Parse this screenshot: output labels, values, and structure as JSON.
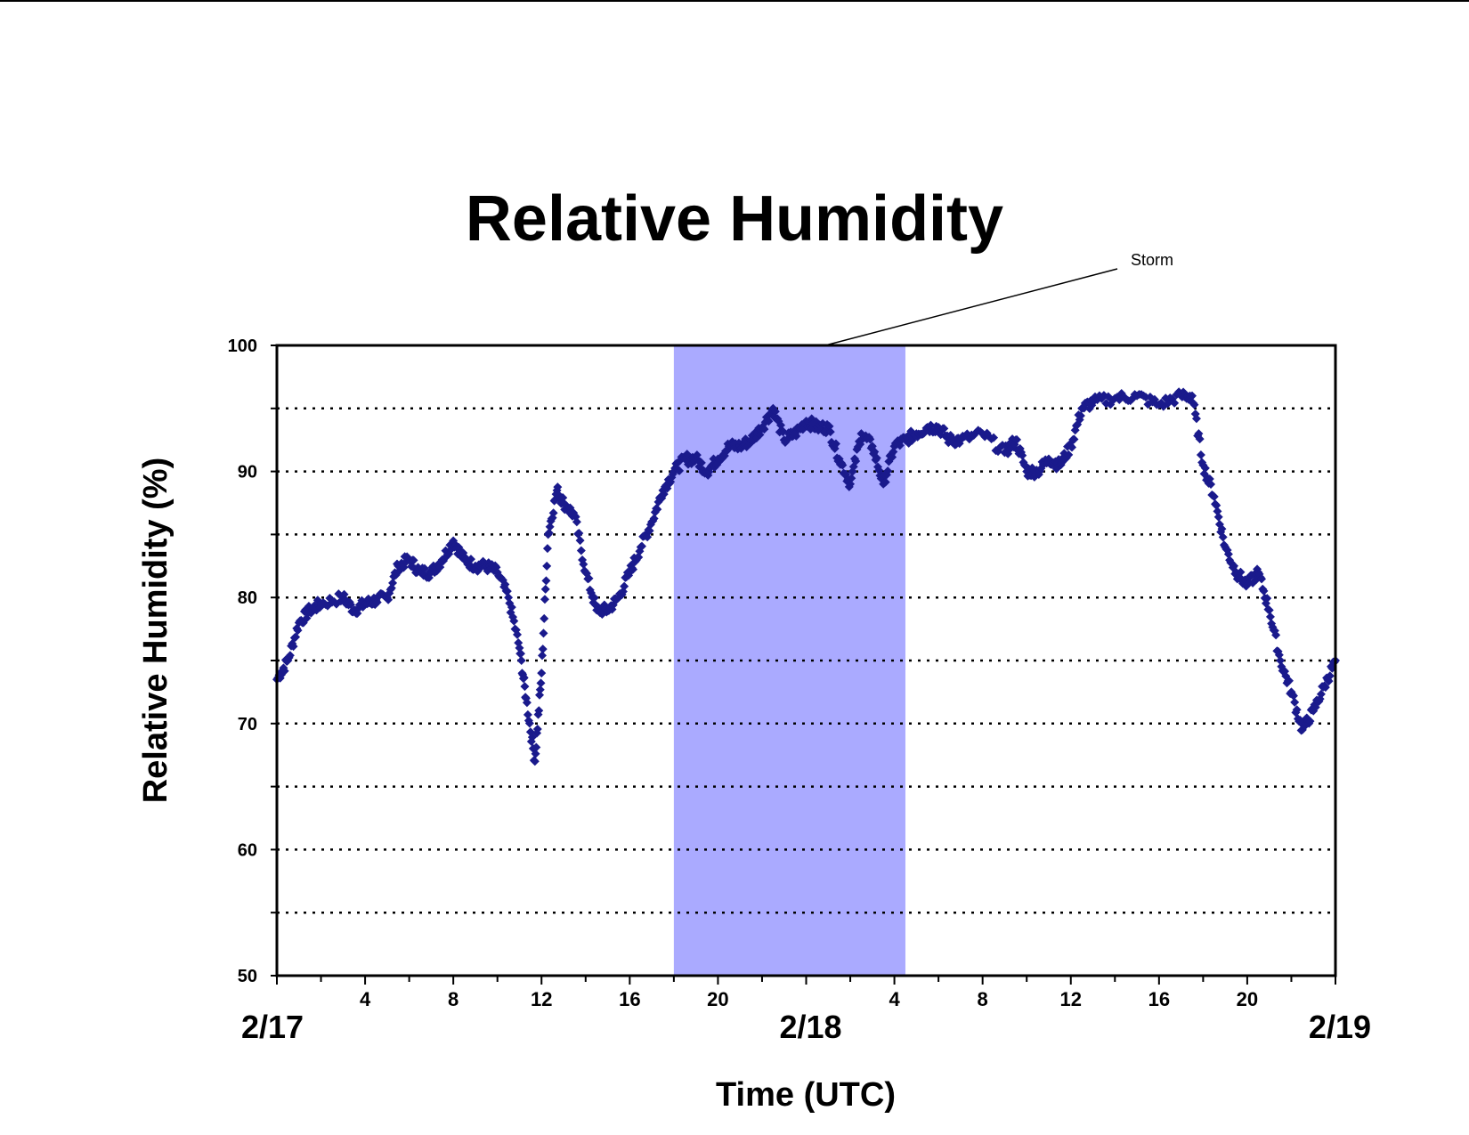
{
  "chart_data": {
    "type": "scatter",
    "title": "Relative Humidity",
    "xlabel": "Time (UTC)",
    "ylabel": "Relative Humidity (%)",
    "ylim": [
      50,
      100
    ],
    "yticks": [
      50,
      60,
      70,
      80,
      90,
      100
    ],
    "grid": {
      "y_minor_every": 5,
      "style": "dotted"
    },
    "xlim_hours": [
      0,
      48
    ],
    "xtick_labels": [
      {
        "h": 4,
        "label": "4"
      },
      {
        "h": 8,
        "label": "8"
      },
      {
        "h": 12,
        "label": "12"
      },
      {
        "h": 16,
        "label": "16"
      },
      {
        "h": 20,
        "label": "20"
      },
      {
        "h": 28,
        "label": "4"
      },
      {
        "h": 32,
        "label": "8"
      },
      {
        "h": 36,
        "label": "12"
      },
      {
        "h": 40,
        "label": "16"
      },
      {
        "h": 44,
        "label": "20"
      }
    ],
    "day_labels": [
      {
        "h": 0,
        "label": "2/17"
      },
      {
        "h": 24,
        "label": "2/18"
      },
      {
        "h": 48,
        "label": "2/19"
      }
    ],
    "shaded_region": {
      "label": "Storm",
      "x_start_hours": 18,
      "x_end_hours": 28.5,
      "color": "#aaaaff"
    },
    "marker_color": "#1a1a8c",
    "series": [
      {
        "points": [
          [
            0,
            73.5
          ],
          [
            0.5,
            75
          ],
          [
            1,
            78
          ],
          [
            1.5,
            79
          ],
          [
            2,
            79.5
          ],
          [
            3,
            80
          ],
          [
            3.5,
            79
          ],
          [
            4,
            79.5
          ],
          [
            4.5,
            79.8
          ],
          [
            5,
            80
          ],
          [
            5.5,
            82.5
          ],
          [
            6,
            83
          ],
          [
            6.5,
            82
          ],
          [
            7,
            82
          ],
          [
            7.5,
            83
          ],
          [
            8,
            84.5
          ],
          [
            8.5,
            83
          ],
          [
            9,
            82.5
          ],
          [
            9.5,
            82.5
          ],
          [
            10,
            82
          ],
          [
            10.5,
            80
          ],
          [
            11,
            76
          ],
          [
            11.3,
            72
          ],
          [
            11.7,
            67
          ],
          [
            12,
            74
          ],
          [
            12.3,
            85
          ],
          [
            12.7,
            88.5
          ],
          [
            13,
            87.5
          ],
          [
            13.5,
            86.5
          ],
          [
            14,
            82
          ],
          [
            14.5,
            79
          ],
          [
            15,
            79
          ],
          [
            15.5,
            80
          ],
          [
            16,
            82
          ],
          [
            16.5,
            84
          ],
          [
            17,
            86
          ],
          [
            17.5,
            88.5
          ],
          [
            18,
            90
          ],
          [
            18.5,
            91
          ],
          [
            19,
            91
          ],
          [
            19.5,
            90
          ],
          [
            20,
            91
          ],
          [
            20.5,
            92
          ],
          [
            21,
            92
          ],
          [
            21.5,
            92.5
          ],
          [
            22,
            93.5
          ],
          [
            22.5,
            95
          ],
          [
            23,
            92.5
          ],
          [
            23.5,
            93
          ],
          [
            24,
            94
          ],
          [
            24.5,
            93.5
          ],
          [
            25,
            93.5
          ],
          [
            25.5,
            91
          ],
          [
            26,
            89
          ],
          [
            26.5,
            93
          ],
          [
            27,
            92
          ],
          [
            27.5,
            89
          ],
          [
            28,
            92
          ],
          [
            28.5,
            92.5
          ],
          [
            29,
            93
          ],
          [
            29.5,
            93.5
          ],
          [
            30,
            93.5
          ],
          [
            30.5,
            92.5
          ],
          [
            31,
            92.5
          ],
          [
            32,
            93
          ],
          [
            33,
            91.5
          ],
          [
            33.5,
            92.5
          ],
          [
            34,
            90
          ],
          [
            34.5,
            90
          ],
          [
            35,
            91
          ],
          [
            35.5,
            90.5
          ],
          [
            36,
            92
          ],
          [
            36.5,
            95
          ],
          [
            37,
            95.5
          ],
          [
            38,
            95.8
          ],
          [
            39,
            96
          ],
          [
            40,
            95.3
          ],
          [
            41,
            96
          ],
          [
            41.5,
            96
          ],
          [
            42,
            90.5
          ],
          [
            42.5,
            88
          ],
          [
            43,
            84
          ],
          [
            43.5,
            82
          ],
          [
            44,
            81
          ],
          [
            44.5,
            82
          ],
          [
            45,
            79
          ],
          [
            45.5,
            75
          ],
          [
            46,
            72.5
          ],
          [
            46.5,
            69.5
          ],
          [
            47,
            71
          ],
          [
            47.5,
            73
          ],
          [
            48,
            75
          ]
        ]
      }
    ]
  }
}
